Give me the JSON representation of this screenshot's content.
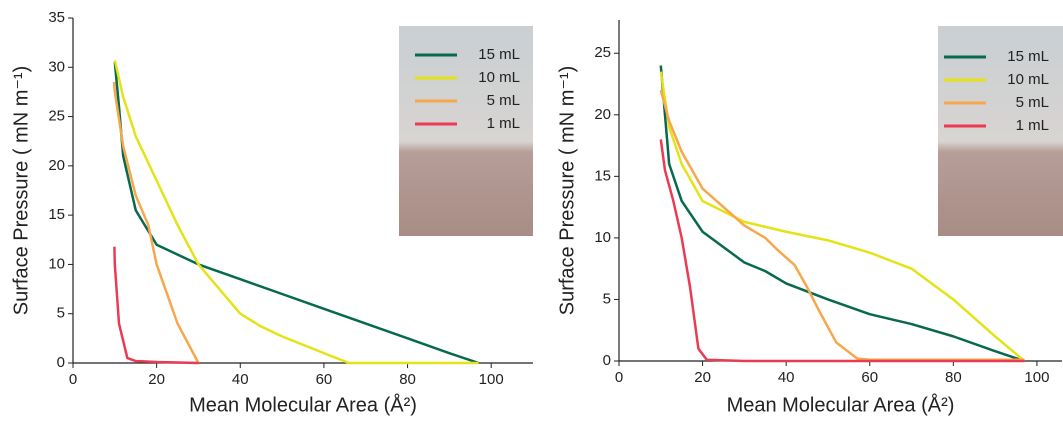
{
  "chart_data": [
    {
      "type": "line",
      "xlabel": "Mean Molecular Area (Å²)",
      "ylabel": "Surface Pressure ( mN m⁻¹)",
      "xlim": [
        0,
        110
      ],
      "xticks": [
        0,
        20,
        40,
        60,
        80,
        100
      ],
      "ylim": [
        0,
        35
      ],
      "yticks": [
        0,
        5,
        10,
        15,
        20,
        25,
        30,
        35
      ],
      "legend": "upper right",
      "series": [
        {
          "name": "15 mL",
          "color": "#08694e",
          "x": [
            97,
            90,
            80,
            70,
            60,
            50,
            40,
            30,
            20,
            15,
            12,
            11,
            10
          ],
          "values": [
            0,
            1,
            2.5,
            4,
            5.5,
            7,
            8.5,
            10,
            12,
            15.5,
            21,
            26,
            30.5
          ]
        },
        {
          "name": "10 mL",
          "color": "#e3e317",
          "x": [
            97,
            66,
            60,
            50,
            45,
            40,
            35,
            30,
            25,
            20,
            15,
            12,
            10
          ],
          "values": [
            0,
            0,
            1,
            2.7,
            3.7,
            5,
            7.5,
            10,
            14,
            18.5,
            23,
            27,
            30.7
          ]
        },
        {
          "name": "5 mL",
          "color": "#f7a74c",
          "x": [
            30,
            25,
            20,
            18,
            15,
            12,
            10,
            9.8
          ],
          "values": [
            0,
            4,
            10,
            14,
            17,
            22,
            27.5,
            28.5
          ]
        },
        {
          "name": "1 mL",
          "color": "#ea3b52",
          "x": [
            30,
            20,
            15,
            13,
            11,
            10,
            9.9
          ],
          "values": [
            0,
            0.1,
            0.2,
            0.5,
            4,
            10,
            11.8
          ]
        }
      ]
    },
    {
      "type": "line",
      "xlabel": "Mean Molecular Area (Å²)",
      "ylabel": "Surface Pressure ( mN m⁻¹)",
      "xlim": [
        0,
        106
      ],
      "xticks": [
        0,
        20,
        40,
        60,
        80,
        100
      ],
      "ylim": [
        0,
        27.7
      ],
      "yticks": [
        0,
        5,
        10,
        15,
        20,
        25
      ],
      "legend": "upper right",
      "series": [
        {
          "name": "15 mL",
          "color": "#08694e",
          "x": [
            97,
            90,
            80,
            70,
            60,
            50,
            40,
            35,
            30,
            20,
            15,
            12,
            10
          ],
          "values": [
            0,
            0.8,
            2,
            3,
            3.8,
            5,
            6.3,
            7.3,
            8,
            10.5,
            13,
            16,
            24
          ]
        },
        {
          "name": "10 mL",
          "color": "#e3e317",
          "x": [
            97,
            90,
            80,
            70,
            60,
            50,
            40,
            30,
            20,
            15,
            12,
            10
          ],
          "values": [
            0,
            2,
            5,
            7.5,
            8.8,
            9.8,
            10.5,
            11.3,
            13,
            16,
            19,
            23.5
          ]
        },
        {
          "name": "5 mL",
          "color": "#f7a74c",
          "x": [
            97,
            60,
            57,
            52,
            48,
            45,
            42,
            38,
            35,
            30,
            25,
            20,
            15,
            12,
            10
          ],
          "values": [
            0.1,
            0.1,
            0.2,
            1.5,
            4,
            6,
            7.8,
            9,
            10,
            11,
            12.5,
            14,
            17,
            19.5,
            22
          ]
        },
        {
          "name": "1 mL",
          "color": "#ea3b52",
          "x": [
            97,
            30,
            21,
            19,
            17,
            15,
            13,
            11,
            10
          ],
          "values": [
            0,
            0,
            0.1,
            1,
            6,
            10,
            13,
            15.5,
            18
          ]
        }
      ]
    }
  ]
}
